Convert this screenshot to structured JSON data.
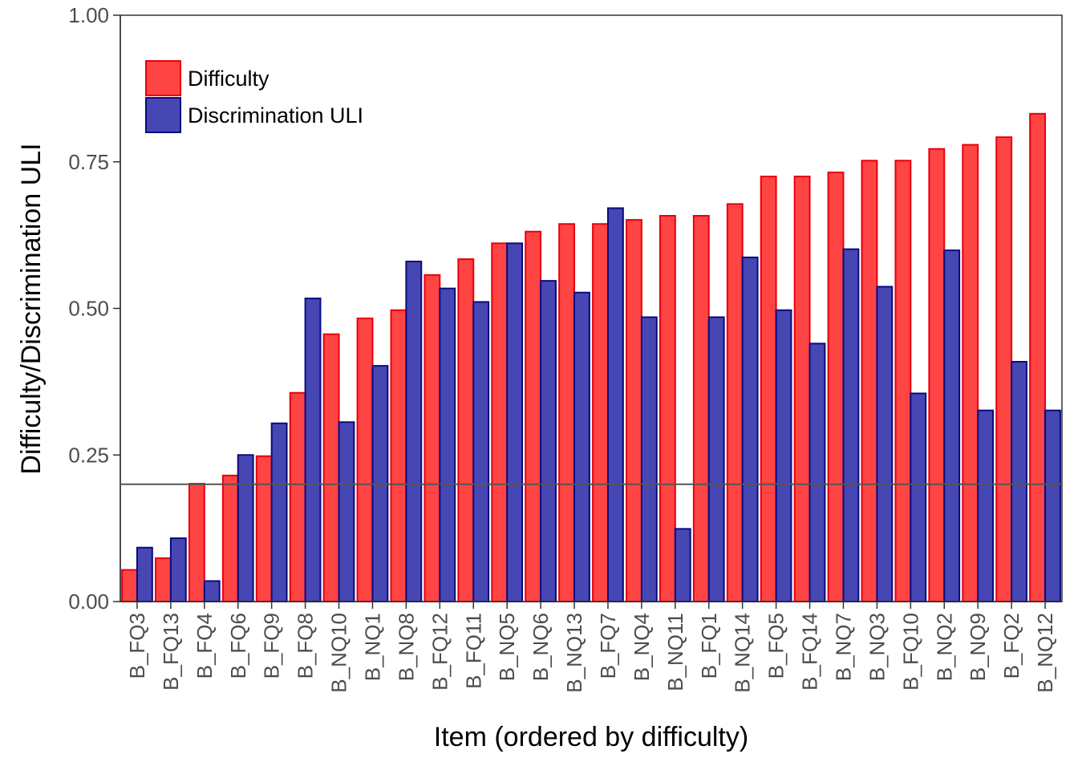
{
  "chart_data": {
    "type": "bar",
    "xlabel": "Item (ordered by difficulty)",
    "ylabel": "Difficulty/Discrimination ULI",
    "ylim": [
      0,
      1
    ],
    "yticks": [
      "0.00",
      "0.25",
      "0.50",
      "0.75",
      "1.00"
    ],
    "ytick_values": [
      0,
      0.25,
      0.5,
      0.75,
      1
    ],
    "reference_line": 0.2,
    "grid": false,
    "legend_position": "top-left",
    "categories": [
      "B_FQ3",
      "B_FQ13",
      "B_FQ4",
      "B_FQ6",
      "B_FQ9",
      "B_FQ8",
      "B_NQ10",
      "B_NQ1",
      "B_NQ8",
      "B_FQ12",
      "B_FQ11",
      "B_NQ5",
      "B_NQ6",
      "B_NQ13",
      "B_FQ7",
      "B_NQ4",
      "B_NQ11",
      "B_FQ1",
      "B_NQ14",
      "B_FQ5",
      "B_FQ14",
      "B_NQ7",
      "B_NQ3",
      "B_FQ10",
      "B_NQ2",
      "B_NQ9",
      "B_FQ2",
      "B_NQ12"
    ],
    "series": [
      {
        "name": "Difficulty",
        "fill": "#ff4444",
        "stroke": "#e8000b",
        "values": [
          0.054,
          0.074,
          0.201,
          0.215,
          0.248,
          0.356,
          0.456,
          0.483,
          0.497,
          0.557,
          0.584,
          0.611,
          0.631,
          0.644,
          0.644,
          0.651,
          0.658,
          0.658,
          0.678,
          0.725,
          0.725,
          0.732,
          0.752,
          0.752,
          0.772,
          0.779,
          0.792,
          0.832
        ]
      },
      {
        "name": "Discrimination ULI",
        "fill": "#4747b3",
        "stroke": "#0a0a80",
        "values": [
          0.092,
          0.108,
          0.035,
          0.25,
          0.304,
          0.517,
          0.306,
          0.402,
          0.58,
          0.534,
          0.511,
          0.611,
          0.547,
          0.527,
          0.671,
          0.485,
          0.124,
          0.485,
          0.587,
          0.497,
          0.44,
          0.601,
          0.537,
          0.355,
          0.599,
          0.326,
          0.409,
          0.326
        ]
      }
    ],
    "colors": {
      "axis": "#333333",
      "reference_line": "#555555"
    }
  }
}
